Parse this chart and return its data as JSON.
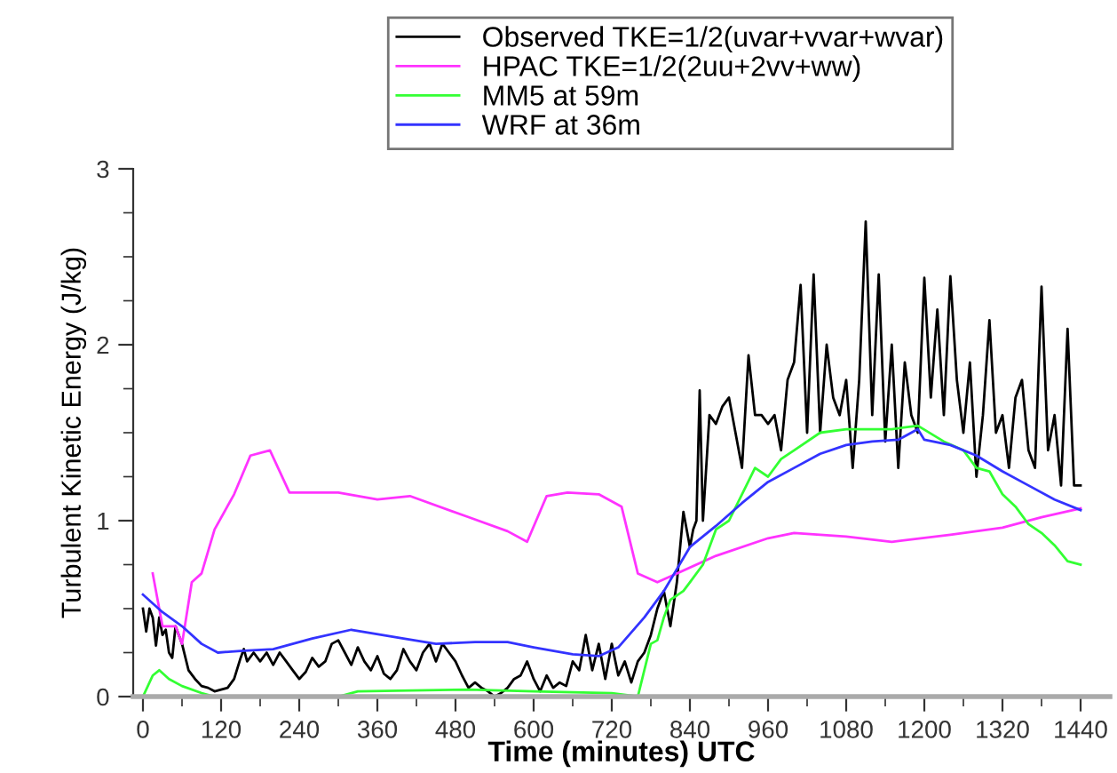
{
  "chart_data": {
    "type": "line",
    "xlabel": "Time (minutes) UTC",
    "ylabel": "Turbulent Kinetic Energy (J/kg)",
    "xlim": [
      -15,
      1485
    ],
    "xticks": [
      0,
      120,
      240,
      360,
      480,
      600,
      720,
      840,
      960,
      1080,
      1200,
      1320,
      1440
    ],
    "ylim": [
      0,
      3
    ],
    "yticks": [
      0,
      1,
      2,
      3
    ],
    "grid": false,
    "legend": "top",
    "marker": "none",
    "line_style": "solid",
    "series": [
      {
        "name": "Observed TKE=1/2(uvar+vvar+wvar)",
        "color": "#000000",
        "x": [
          0,
          5,
          10,
          15,
          20,
          25,
          30,
          35,
          40,
          45,
          50,
          55,
          60,
          70,
          80,
          90,
          100,
          110,
          120,
          130,
          140,
          150,
          155,
          160,
          170,
          180,
          190,
          200,
          210,
          220,
          230,
          240,
          250,
          260,
          270,
          280,
          290,
          300,
          310,
          320,
          330,
          340,
          350,
          360,
          370,
          380,
          390,
          400,
          410,
          420,
          430,
          440,
          450,
          460,
          470,
          480,
          490,
          500,
          510,
          520,
          530,
          540,
          550,
          560,
          570,
          580,
          590,
          600,
          610,
          620,
          630,
          640,
          650,
          660,
          670,
          680,
          690,
          700,
          710,
          720,
          730,
          740,
          750,
          760,
          770,
          780,
          790,
          800,
          810,
          820,
          830,
          840,
          845,
          850,
          855,
          860,
          870,
          880,
          890,
          900,
          910,
          920,
          930,
          940,
          950,
          960,
          970,
          980,
          990,
          1000,
          1010,
          1020,
          1030,
          1040,
          1050,
          1060,
          1070,
          1080,
          1090,
          1100,
          1110,
          1120,
          1130,
          1140,
          1150,
          1160,
          1170,
          1180,
          1190,
          1200,
          1210,
          1220,
          1230,
          1240,
          1250,
          1260,
          1270,
          1280,
          1290,
          1300,
          1310,
          1320,
          1330,
          1340,
          1350,
          1360,
          1370,
          1380,
          1390,
          1400,
          1410,
          1420,
          1430,
          1440
        ],
        "values": [
          0.5,
          0.37,
          0.5,
          0.45,
          0.29,
          0.45,
          0.35,
          0.38,
          0.25,
          0.22,
          0.4,
          0.35,
          0.3,
          0.15,
          0.1,
          0.06,
          0.05,
          0.03,
          0.04,
          0.05,
          0.1,
          0.22,
          0.27,
          0.2,
          0.25,
          0.2,
          0.25,
          0.18,
          0.25,
          0.2,
          0.15,
          0.1,
          0.14,
          0.22,
          0.17,
          0.2,
          0.3,
          0.32,
          0.25,
          0.18,
          0.28,
          0.2,
          0.15,
          0.23,
          0.13,
          0.1,
          0.15,
          0.27,
          0.2,
          0.15,
          0.25,
          0.3,
          0.2,
          0.3,
          0.25,
          0.2,
          0.12,
          0.05,
          0.08,
          0.05,
          0.03,
          0.0,
          0.02,
          0.05,
          0.1,
          0.12,
          0.2,
          0.1,
          0.03,
          0.12,
          0.05,
          0.08,
          0.06,
          0.2,
          0.15,
          0.35,
          0.15,
          0.3,
          0.1,
          0.3,
          0.12,
          0.2,
          0.08,
          0.2,
          0.25,
          0.35,
          0.5,
          0.6,
          0.4,
          0.65,
          1.05,
          0.85,
          0.95,
          1.0,
          1.74,
          1.0,
          1.6,
          1.55,
          1.65,
          1.7,
          1.5,
          1.3,
          1.94,
          1.6,
          1.6,
          1.55,
          1.6,
          1.4,
          1.8,
          1.9,
          2.34,
          1.5,
          2.4,
          1.5,
          2.0,
          1.7,
          1.6,
          1.8,
          1.3,
          1.8,
          2.7,
          1.6,
          2.4,
          1.45,
          2.0,
          1.3,
          1.9,
          1.6,
          1.5,
          2.38,
          1.7,
          2.2,
          1.6,
          2.39,
          1.8,
          1.5,
          1.9,
          1.25,
          1.6,
          2.14,
          1.5,
          1.6,
          1.3,
          1.7,
          1.8,
          1.4,
          1.3,
          2.33,
          1.4,
          1.6,
          1.2,
          2.09,
          1.2,
          1.2
        ]
      },
      {
        "name": "HPAC TKE=1/2(2uu+2vv+ww)",
        "color": "#ff33ff",
        "x": [
          15,
          30,
          50,
          60,
          75,
          90,
          110,
          140,
          165,
          195,
          225,
          300,
          360,
          410,
          500,
          560,
          590,
          620,
          652,
          700,
          735,
          760,
          790,
          820,
          880,
          960,
          1000,
          1080,
          1150,
          1240,
          1320,
          1380,
          1440
        ],
        "values": [
          0.7,
          0.4,
          0.4,
          0.3,
          0.65,
          0.7,
          0.95,
          1.15,
          1.37,
          1.4,
          1.16,
          1.16,
          1.12,
          1.14,
          1.02,
          0.94,
          0.88,
          1.14,
          1.16,
          1.15,
          1.08,
          0.7,
          0.65,
          0.7,
          0.8,
          0.9,
          0.93,
          0.91,
          0.88,
          0.92,
          0.96,
          1.02,
          1.07
        ]
      },
      {
        "name": "MM5 at 59m",
        "color": "#33ff33",
        "x": [
          0,
          15,
          25,
          40,
          60,
          90,
          110,
          300,
          330,
          500,
          600,
          720,
          760,
          780,
          790,
          800,
          810,
          830,
          840,
          860,
          880,
          900,
          920,
          940,
          960,
          980,
          1000,
          1040,
          1080,
          1150,
          1190,
          1230,
          1260,
          1280,
          1300,
          1320,
          1340,
          1360,
          1380,
          1400,
          1420,
          1440
        ],
        "values": [
          0,
          0.12,
          0.15,
          0.1,
          0.06,
          0.02,
          0,
          0,
          0.03,
          0.04,
          0.03,
          0.02,
          0,
          0.3,
          0.32,
          0.45,
          0.55,
          0.6,
          0.65,
          0.75,
          0.95,
          1.0,
          1.15,
          1.3,
          1.25,
          1.35,
          1.4,
          1.5,
          1.52,
          1.52,
          1.54,
          1.45,
          1.4,
          1.3,
          1.28,
          1.15,
          1.08,
          0.98,
          0.93,
          0.86,
          0.77,
          0.75
        ]
      },
      {
        "name": "WRF at 36m",
        "color": "#3333ff",
        "x": [
          0,
          30,
          60,
          90,
          115,
          150,
          200,
          260,
          320,
          400,
          450,
          510,
          560,
          600,
          660,
          700,
          730,
          770,
          800,
          840,
          880,
          920,
          960,
          1000,
          1040,
          1080,
          1120,
          1160,
          1190,
          1200,
          1240,
          1280,
          1320,
          1360,
          1400,
          1440
        ],
        "values": [
          0.58,
          0.48,
          0.4,
          0.3,
          0.25,
          0.26,
          0.27,
          0.33,
          0.38,
          0.33,
          0.3,
          0.31,
          0.31,
          0.28,
          0.24,
          0.23,
          0.28,
          0.45,
          0.6,
          0.85,
          0.97,
          1.1,
          1.22,
          1.3,
          1.38,
          1.43,
          1.45,
          1.46,
          1.52,
          1.46,
          1.43,
          1.37,
          1.28,
          1.2,
          1.12,
          1.06
        ]
      }
    ]
  }
}
